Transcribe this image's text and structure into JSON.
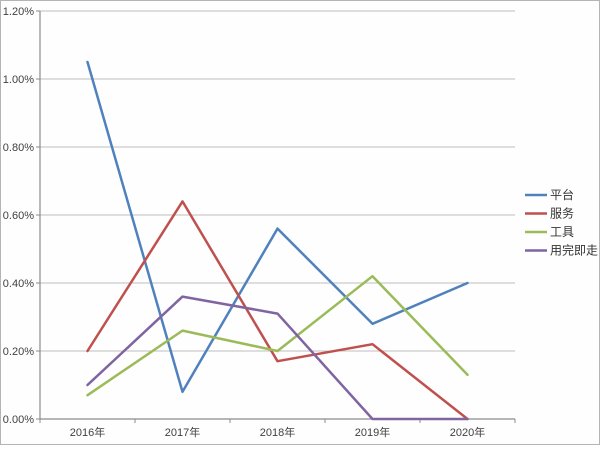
{
  "chart_data": {
    "type": "line",
    "title": "",
    "xlabel": "",
    "ylabel": "",
    "categories": [
      "2016年",
      "2017年",
      "2018年",
      "2019年",
      "2020年"
    ],
    "series": [
      {
        "name": "平台",
        "color": "#4F81BD",
        "values": [
          1.05,
          0.08,
          0.56,
          0.28,
          0.4
        ]
      },
      {
        "name": "服务",
        "color": "#C0504D",
        "values": [
          0.2,
          0.64,
          0.17,
          0.22,
          0.0
        ]
      },
      {
        "name": "工具",
        "color": "#9BBB59",
        "values": [
          0.07,
          0.26,
          0.2,
          0.42,
          0.13
        ]
      },
      {
        "name": "用完即走",
        "color": "#8064A2",
        "values": [
          0.1,
          0.36,
          0.31,
          0.0,
          0.0
        ]
      }
    ],
    "values_unit": "%",
    "ylim": [
      0,
      1.2
    ],
    "ytick_step": 0.2,
    "ytick_labels": [
      "0.00%",
      "0.20%",
      "0.40%",
      "0.60%",
      "0.80%",
      "1.00%",
      "1.20%"
    ],
    "grid": "horizontal",
    "legend_position": "right",
    "colors": {
      "gridline": "#bdbdbd",
      "axis": "#8c8c8c",
      "tick_label": "#404040",
      "legend_text": "#333333",
      "background": "#fefefe"
    }
  }
}
